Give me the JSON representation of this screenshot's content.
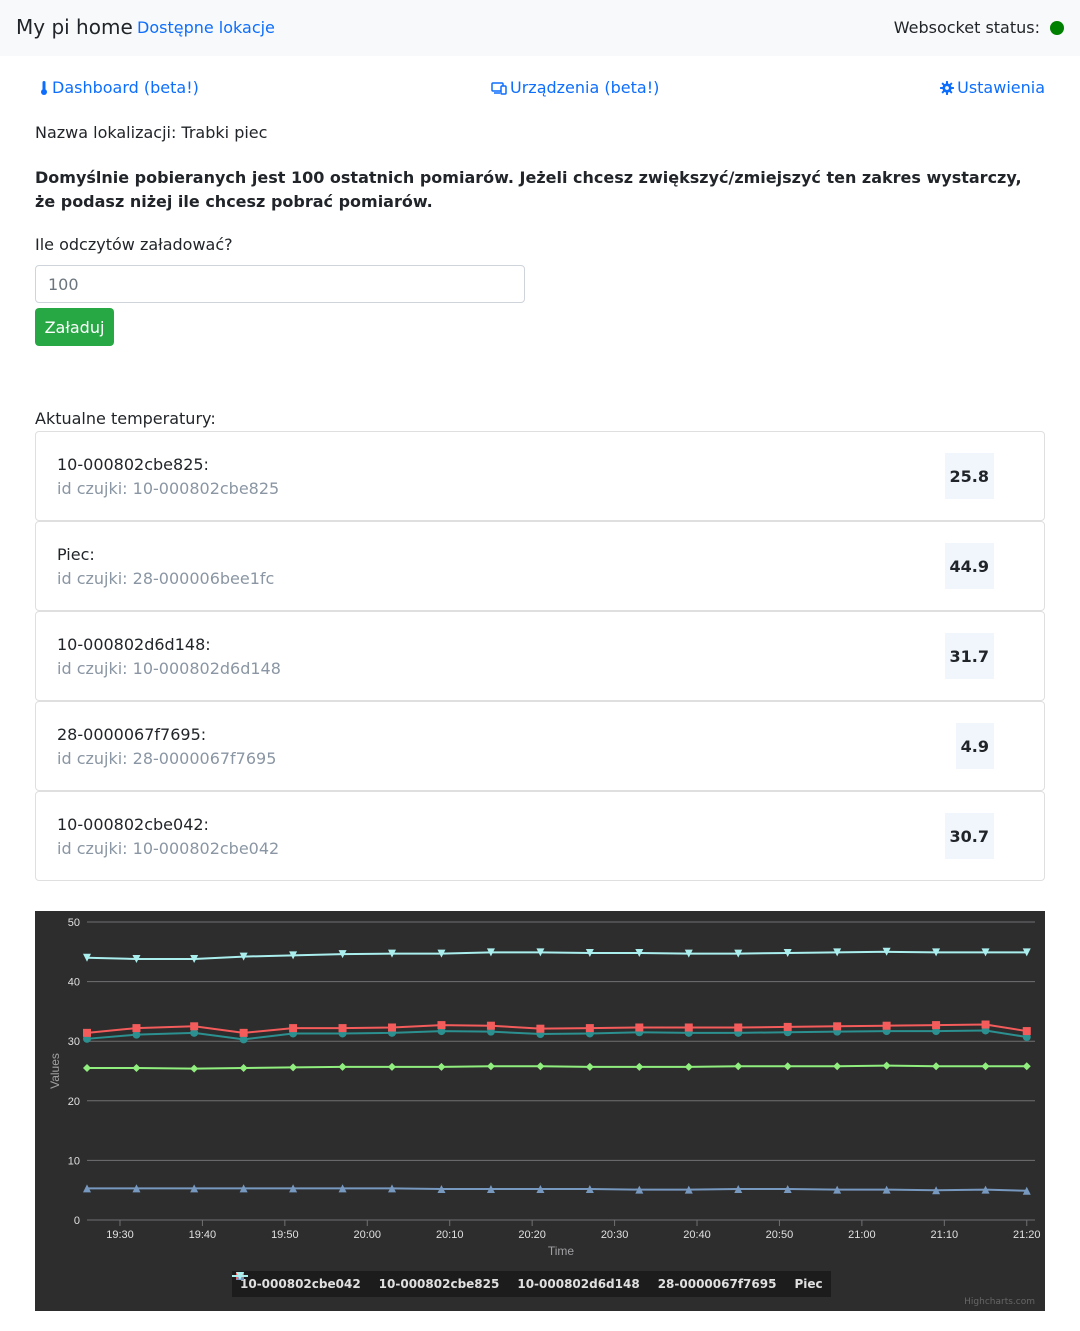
{
  "navbar": {
    "brand": "My pi home",
    "locations_link": "Dostępne lokacje",
    "websocket_label": "Websocket status:",
    "websocket_color": "#008000"
  },
  "tabs": {
    "dashboard": "Dashboard (beta!)",
    "devices": "Urządzenia (beta!)",
    "settings": "Ustawienia"
  },
  "location_name": "Nazwa lokalizacji: Trabki piec",
  "info_text": "Domyślnie pobieranych jest 100 ostatnich pomiarów. Jeżeli chcesz zwiększyć/zmiejszyć ten zakres wystarczy, że podasz niżej ile chcesz pobrać pomiarów.",
  "count_form": {
    "label": "Ile odczytów załadować?",
    "value": "100",
    "button": "Załaduj"
  },
  "current_temps_label": "Aktualne temperatury:",
  "sensors": [
    {
      "name": "10-000802cbe825:",
      "id_text": "id czujki: 10-000802cbe825",
      "temp": "25.8"
    },
    {
      "name": "Piec:",
      "id_text": "id czujki: 28-000006bee1fc",
      "temp": "44.9"
    },
    {
      "name": "10-000802d6d148:",
      "id_text": "id czujki: 10-000802d6d148",
      "temp": "31.7"
    },
    {
      "name": "28-0000067f7695:",
      "id_text": "id czujki: 28-0000067f7695",
      "temp": "4.9"
    },
    {
      "name": "10-000802cbe042:",
      "id_text": "id czujki: 10-000802cbe042",
      "temp": "30.7"
    }
  ],
  "chart_data": {
    "type": "line",
    "xlabel": "Time",
    "ylabel": "Values",
    "ylim": [
      0,
      50
    ],
    "y_ticks": [
      0,
      10,
      20,
      30,
      40,
      50
    ],
    "x_ticks": [
      "19:30",
      "19:40",
      "19:50",
      "20:00",
      "20:10",
      "20:20",
      "20:30",
      "20:40",
      "20:50",
      "21:00",
      "21:10",
      "21:20"
    ],
    "xlim": [
      "19:26",
      "21:21"
    ],
    "grid": true,
    "legend_position": "bottom-center",
    "x": [
      "19:26",
      "19:32",
      "19:39",
      "19:45",
      "19:51",
      "19:57",
      "20:03",
      "20:09",
      "20:15",
      "20:21",
      "20:27",
      "20:33",
      "20:39",
      "20:45",
      "20:51",
      "20:57",
      "21:03",
      "21:09",
      "21:15",
      "21:20"
    ],
    "series": [
      {
        "name": "10-000802cbe042",
        "color": "#2b908f",
        "marker": "circle",
        "values": [
          30.4,
          31.1,
          31.4,
          30.3,
          31.3,
          31.3,
          31.4,
          31.7,
          31.6,
          31.2,
          31.3,
          31.5,
          31.4,
          31.4,
          31.5,
          31.6,
          31.7,
          31.7,
          31.8,
          30.7
        ]
      },
      {
        "name": "10-000802cbe825",
        "color": "#90ee7e",
        "marker": "diamond",
        "values": [
          25.5,
          25.5,
          25.4,
          25.5,
          25.6,
          25.7,
          25.7,
          25.7,
          25.8,
          25.8,
          25.7,
          25.7,
          25.7,
          25.8,
          25.8,
          25.8,
          25.9,
          25.8,
          25.8,
          25.8
        ]
      },
      {
        "name": "10-000802d6d148",
        "color": "#f45b5b",
        "marker": "square",
        "values": [
          31.4,
          32.2,
          32.5,
          31.4,
          32.2,
          32.2,
          32.3,
          32.7,
          32.6,
          32.1,
          32.2,
          32.3,
          32.3,
          32.3,
          32.4,
          32.5,
          32.6,
          32.7,
          32.8,
          31.7
        ]
      },
      {
        "name": "28-0000067f7695",
        "color": "#7798bf",
        "marker": "triangle",
        "values": [
          5.3,
          5.3,
          5.3,
          5.3,
          5.3,
          5.3,
          5.3,
          5.2,
          5.2,
          5.2,
          5.2,
          5.1,
          5.1,
          5.2,
          5.2,
          5.1,
          5.1,
          5.0,
          5.1,
          4.9
        ]
      },
      {
        "name": "Piec",
        "color": "#aaeeee",
        "marker": "triangle-down",
        "values": [
          44.0,
          43.8,
          43.8,
          44.2,
          44.4,
          44.6,
          44.7,
          44.7,
          44.9,
          44.9,
          44.8,
          44.8,
          44.7,
          44.7,
          44.8,
          44.9,
          45.0,
          44.9,
          44.9,
          44.9
        ]
      }
    ],
    "credits": "Highcharts.com"
  }
}
